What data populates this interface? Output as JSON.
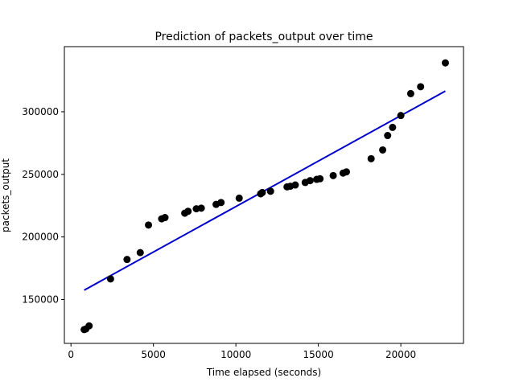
{
  "chart_data": {
    "type": "scatter",
    "title": "Prediction of packets_output over time",
    "xlabel": "Time elapsed (seconds)",
    "ylabel": "packets_output",
    "xlim": [
      -400,
      23800
    ],
    "ylim": [
      115000,
      352000
    ],
    "xticks": [
      0,
      5000,
      10000,
      15000,
      20000
    ],
    "yticks": [
      150000,
      200000,
      250000,
      300000
    ],
    "grid": false,
    "legend": "none",
    "series": [
      {
        "kind": "scatter",
        "color": "#000000",
        "points": [
          [
            800,
            126000
          ],
          [
            900,
            126500
          ],
          [
            1100,
            129000
          ],
          [
            2400,
            166500
          ],
          [
            3400,
            182000
          ],
          [
            4200,
            187500
          ],
          [
            4700,
            209500
          ],
          [
            5500,
            214500
          ],
          [
            5700,
            215500
          ],
          [
            6900,
            219000
          ],
          [
            7100,
            220500
          ],
          [
            7600,
            222500
          ],
          [
            7900,
            223000
          ],
          [
            8800,
            226000
          ],
          [
            9100,
            227500
          ],
          [
            10200,
            231000
          ],
          [
            11500,
            234500
          ],
          [
            11600,
            235500
          ],
          [
            12100,
            236500
          ],
          [
            13100,
            240000
          ],
          [
            13300,
            240500
          ],
          [
            13600,
            241500
          ],
          [
            14200,
            243500
          ],
          [
            14500,
            245000
          ],
          [
            14900,
            246000
          ],
          [
            15100,
            246500
          ],
          [
            15900,
            249000
          ],
          [
            16500,
            251000
          ],
          [
            16700,
            252000
          ],
          [
            18200,
            262500
          ],
          [
            18900,
            269500
          ],
          [
            19200,
            281000
          ],
          [
            19500,
            287500
          ],
          [
            20000,
            297000
          ],
          [
            20600,
            314500
          ],
          [
            21200,
            320000
          ],
          [
            22700,
            339000
          ]
        ]
      },
      {
        "kind": "line",
        "color": "#0000cc",
        "points": [
          [
            800,
            157500
          ],
          [
            22700,
            316500
          ]
        ]
      }
    ]
  }
}
